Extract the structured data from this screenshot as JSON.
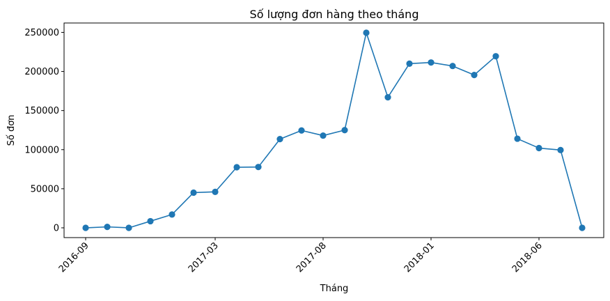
{
  "chart_data": {
    "type": "line",
    "title": "Số lượng đơn hàng theo tháng",
    "xlabel": "Tháng",
    "ylabel": "Số đơn",
    "x": [
      "2016-09",
      "2016-10",
      "2016-11",
      "2016-12",
      "2017-01",
      "2017-02",
      "2017-03",
      "2017-04",
      "2017-05",
      "2017-06",
      "2017-07",
      "2017-08",
      "2017-09",
      "2017-10",
      "2017-11",
      "2017-12",
      "2018-01",
      "2018-02",
      "2018-03",
      "2018-04",
      "2018-05",
      "2018-06",
      "2018-07",
      "2018-08"
    ],
    "series": [
      {
        "name": "",
        "values": [
          0,
          1200,
          0,
          8500,
          17000,
          45000,
          46000,
          77500,
          77800,
          113500,
          124500,
          118000,
          125000,
          249500,
          167000,
          210000,
          211500,
          207000,
          195500,
          219500,
          114000,
          102000,
          99500,
          0
        ]
      }
    ],
    "xticks": [
      "2016-09",
      "2017-03",
      "2017-08",
      "2018-01",
      "2018-06"
    ],
    "yticks": [
      "0",
      "50000",
      "100000",
      "150000",
      "200000",
      "250000"
    ],
    "ylim": [
      -12500,
      262000
    ],
    "grid": false,
    "legend": "none",
    "line_color": "#1f77b4"
  }
}
